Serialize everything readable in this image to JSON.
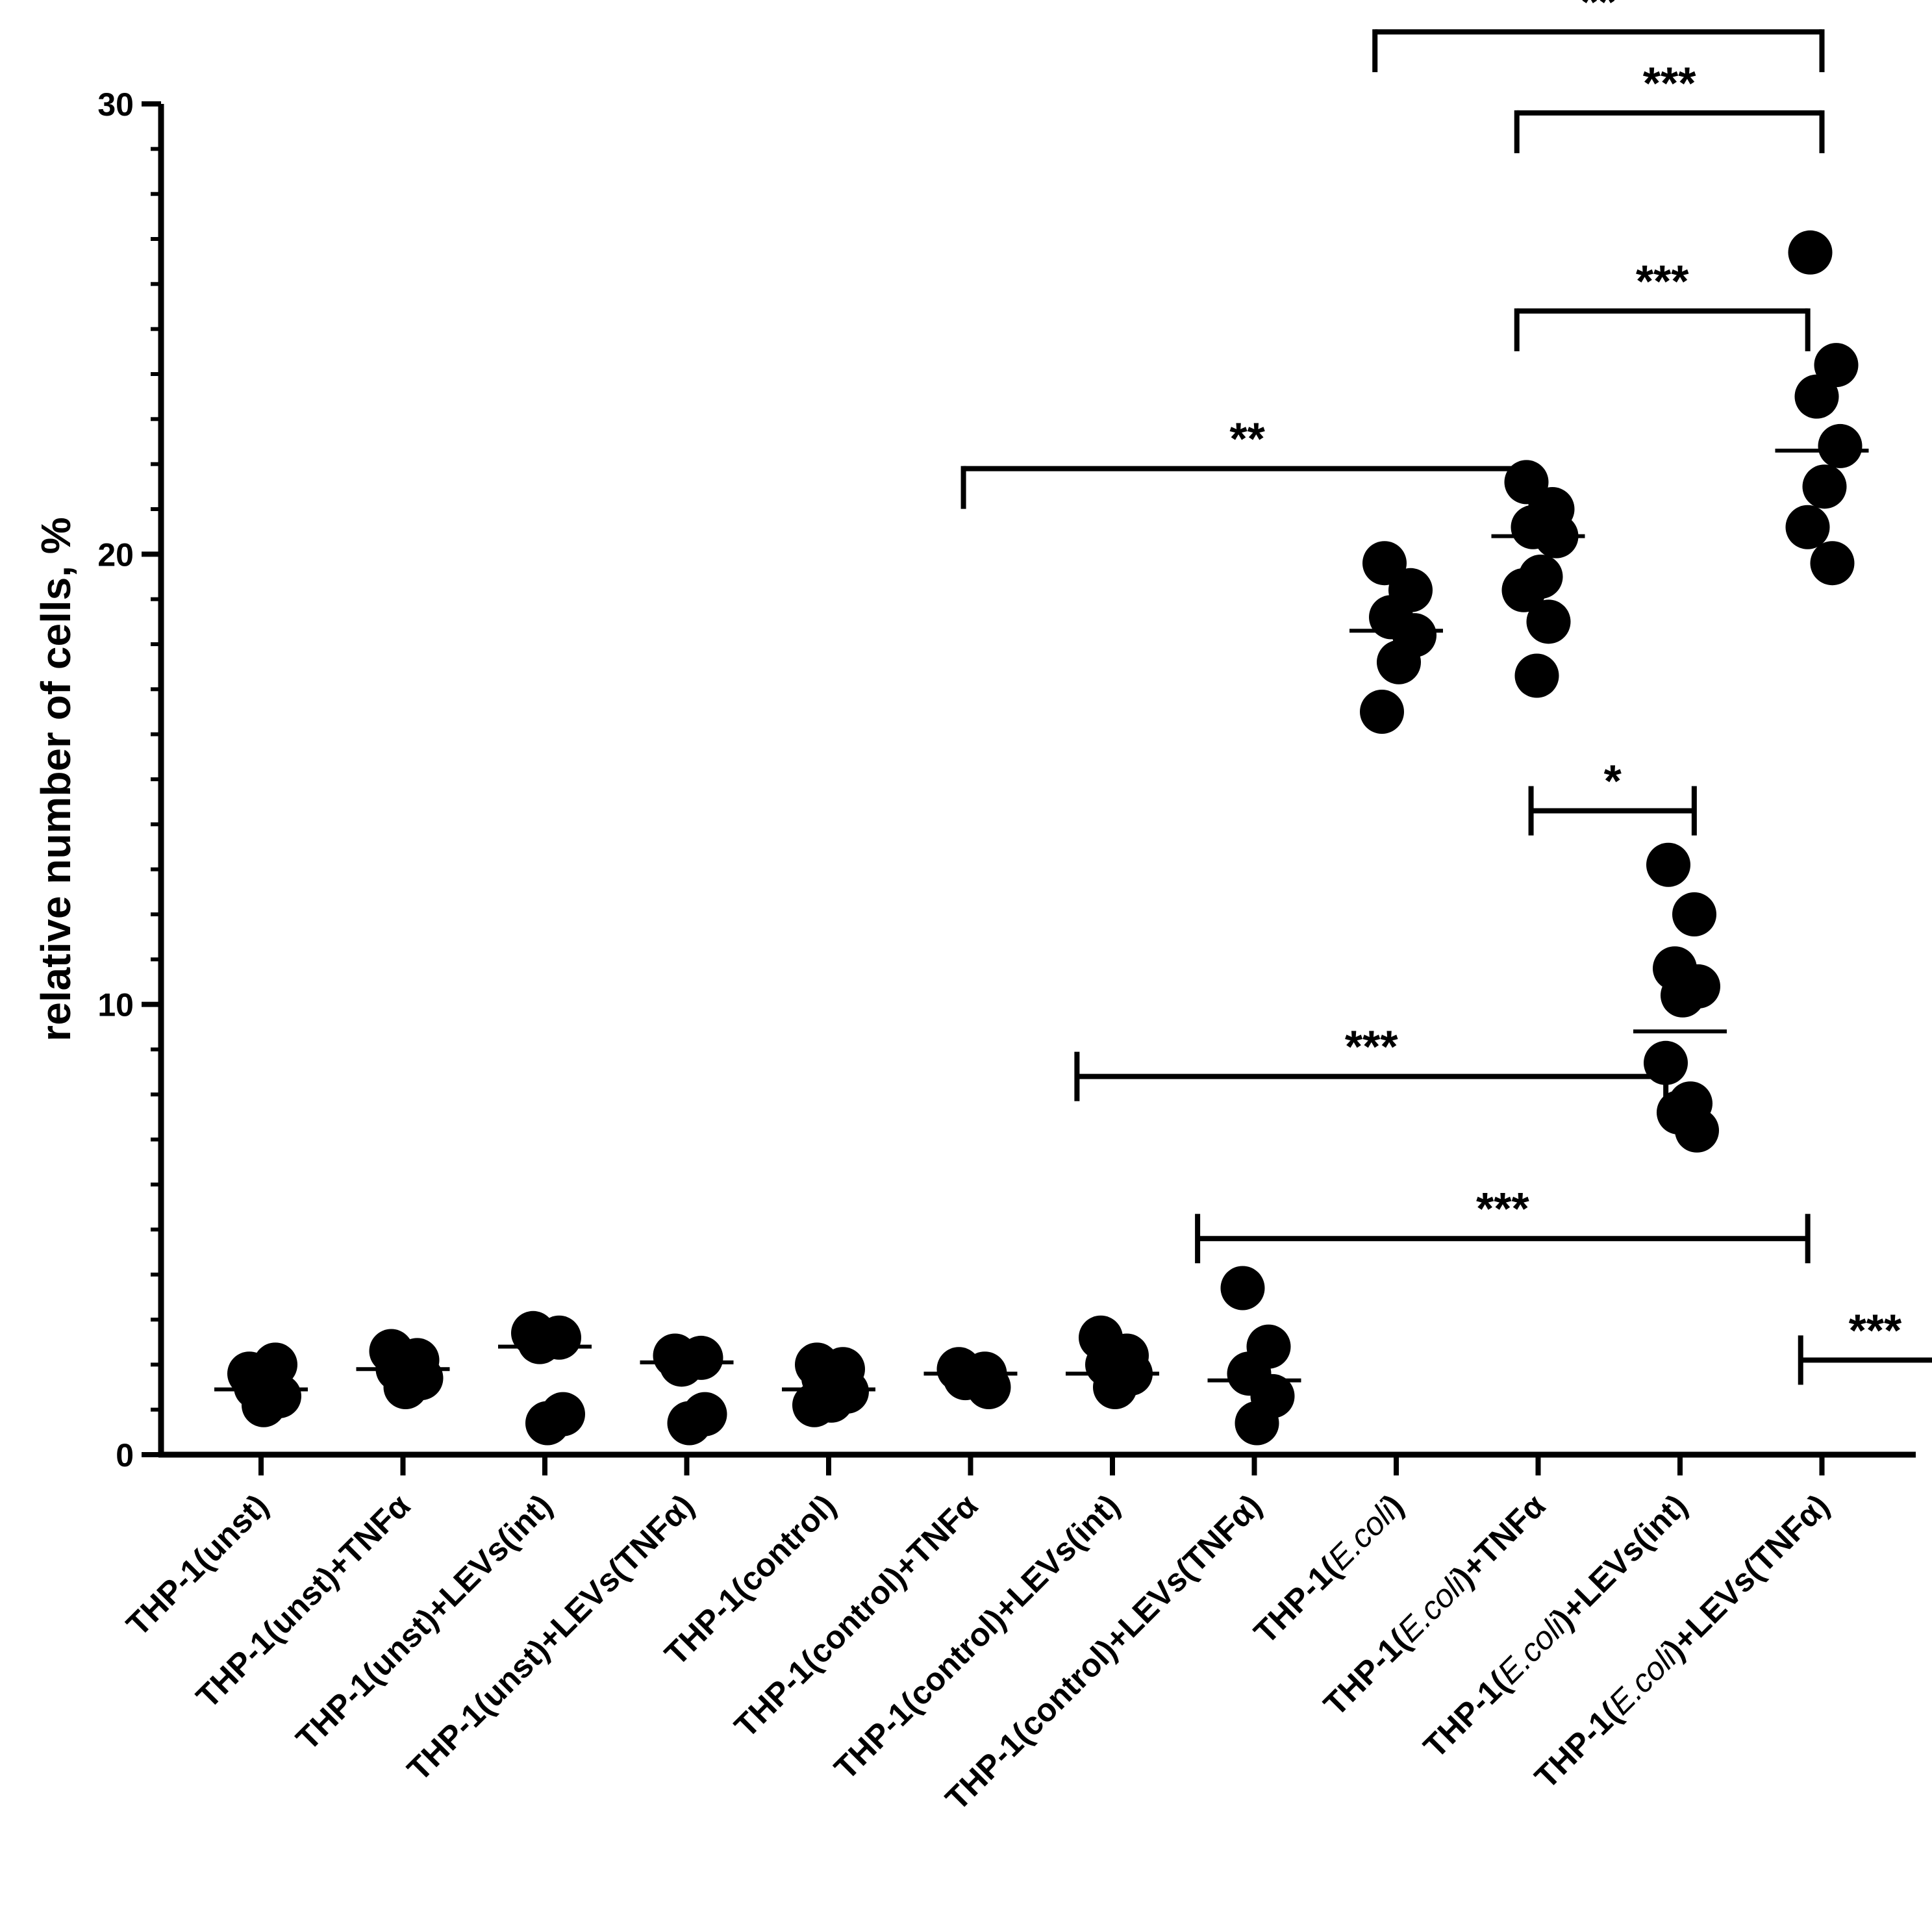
{
  "chart_data": {
    "type": "scatter",
    "title": "",
    "xlabel": "",
    "ylabel": "relative number of cells, %",
    "ylim": [
      0,
      30
    ],
    "yticks": [
      0,
      10,
      20,
      30
    ],
    "color": "#000000",
    "categories": [
      {
        "prefix": "THP-1(unst)",
        "italic": "",
        "suffix": ""
      },
      {
        "prefix": "THP-1(unst)+TNFα",
        "italic": "",
        "suffix": ""
      },
      {
        "prefix": "THP-1(unst)+LEVs(int)",
        "italic": "",
        "suffix": ""
      },
      {
        "prefix": "THP-1(unst)+LEVs(TNFα)",
        "italic": "",
        "suffix": ""
      },
      {
        "prefix": "THP-1(control)",
        "italic": "",
        "suffix": ""
      },
      {
        "prefix": "THP-1(control)+TNFα",
        "italic": "",
        "suffix": ""
      },
      {
        "prefix": "THP-1(control)+LEVs(int)",
        "italic": "",
        "suffix": ""
      },
      {
        "prefix": "THP-1(control)+LEVs(TNFα)",
        "italic": "",
        "suffix": ""
      },
      {
        "prefix": "THP-1(",
        "italic": "E.coli",
        "suffix": ")"
      },
      {
        "prefix": "THP-1(",
        "italic": "E.coli",
        "suffix": ")+TNFα"
      },
      {
        "prefix": "THP-1(",
        "italic": "E.coli",
        "suffix": ")+LEVs(int)"
      },
      {
        "prefix": "THP-1(",
        "italic": "E.coli",
        "suffix": ")+LEVs(TNFα)"
      }
    ],
    "series": [
      {
        "group": 0,
        "points": [
          1.8,
          2.0,
          1.5,
          1.3,
          1.1
        ],
        "mean": 1.45
      },
      {
        "group": 1,
        "points": [
          2.3,
          2.1,
          1.9,
          1.7,
          1.5
        ],
        "mean": 1.9
      },
      {
        "group": 2,
        "points": [
          2.7,
          2.6,
          2.5,
          0.9,
          0.7
        ],
        "mean": 2.4
      },
      {
        "group": 3,
        "points": [
          2.2,
          2.15,
          2.0,
          0.9,
          0.7
        ],
        "mean": 2.05
      },
      {
        "group": 4,
        "points": [
          2.0,
          1.9,
          1.7,
          1.4,
          1.2,
          1.1
        ],
        "mean": 1.45
      },
      {
        "group": 5,
        "points": [
          1.9,
          1.8,
          1.7,
          1.5
        ],
        "mean": 1.8
      },
      {
        "group": 6,
        "points": [
          2.6,
          2.2,
          2.0,
          1.8,
          1.5
        ],
        "mean": 1.8
      },
      {
        "group": 7,
        "points": [
          3.7,
          2.4,
          1.8,
          1.3,
          0.7
        ],
        "mean": 1.65
      },
      {
        "group": 8,
        "points": [
          19.8,
          19.2,
          18.6,
          18.2,
          17.6,
          16.5
        ],
        "mean": 18.3
      },
      {
        "group": 9,
        "points": [
          21.6,
          21.0,
          20.6,
          20.4,
          19.5,
          19.2,
          18.5,
          17.3
        ],
        "mean": 20.4
      },
      {
        "group": 10,
        "points": [
          13.1,
          12.0,
          10.8,
          10.4,
          10.2,
          8.7,
          7.8,
          7.6,
          7.2
        ],
        "mean": 9.4
      },
      {
        "group": 11,
        "points": [
          26.7,
          24.2,
          23.5,
          22.4,
          21.5,
          20.6,
          19.8
        ],
        "mean": 22.3
      }
    ],
    "significance": [
      {
        "from": 7.85,
        "to": 11.0,
        "y": 31.6,
        "label": "**",
        "style": "bracket"
      },
      {
        "from": 8.85,
        "to": 11.0,
        "y": 29.8,
        "label": "***",
        "style": "bracket"
      },
      {
        "from": 8.85,
        "to": 10.9,
        "y": 25.4,
        "label": "***",
        "style": "bracket"
      },
      {
        "from": 4.95,
        "to": 8.95,
        "y": 21.9,
        "label": "**",
        "style": "bracket"
      },
      {
        "from": 8.95,
        "to": 10.1,
        "y": 14.3,
        "label": "*",
        "style": "bar"
      },
      {
        "from": 5.75,
        "to": 9.9,
        "y": 8.4,
        "label": "***",
        "style": "bar"
      },
      {
        "from": 6.6,
        "to": 10.9,
        "y": 4.8,
        "label": "***",
        "style": "bar"
      },
      {
        "from": 10.85,
        "to": 11.9,
        "y": 2.1,
        "label": "***",
        "style": "bar"
      }
    ]
  }
}
